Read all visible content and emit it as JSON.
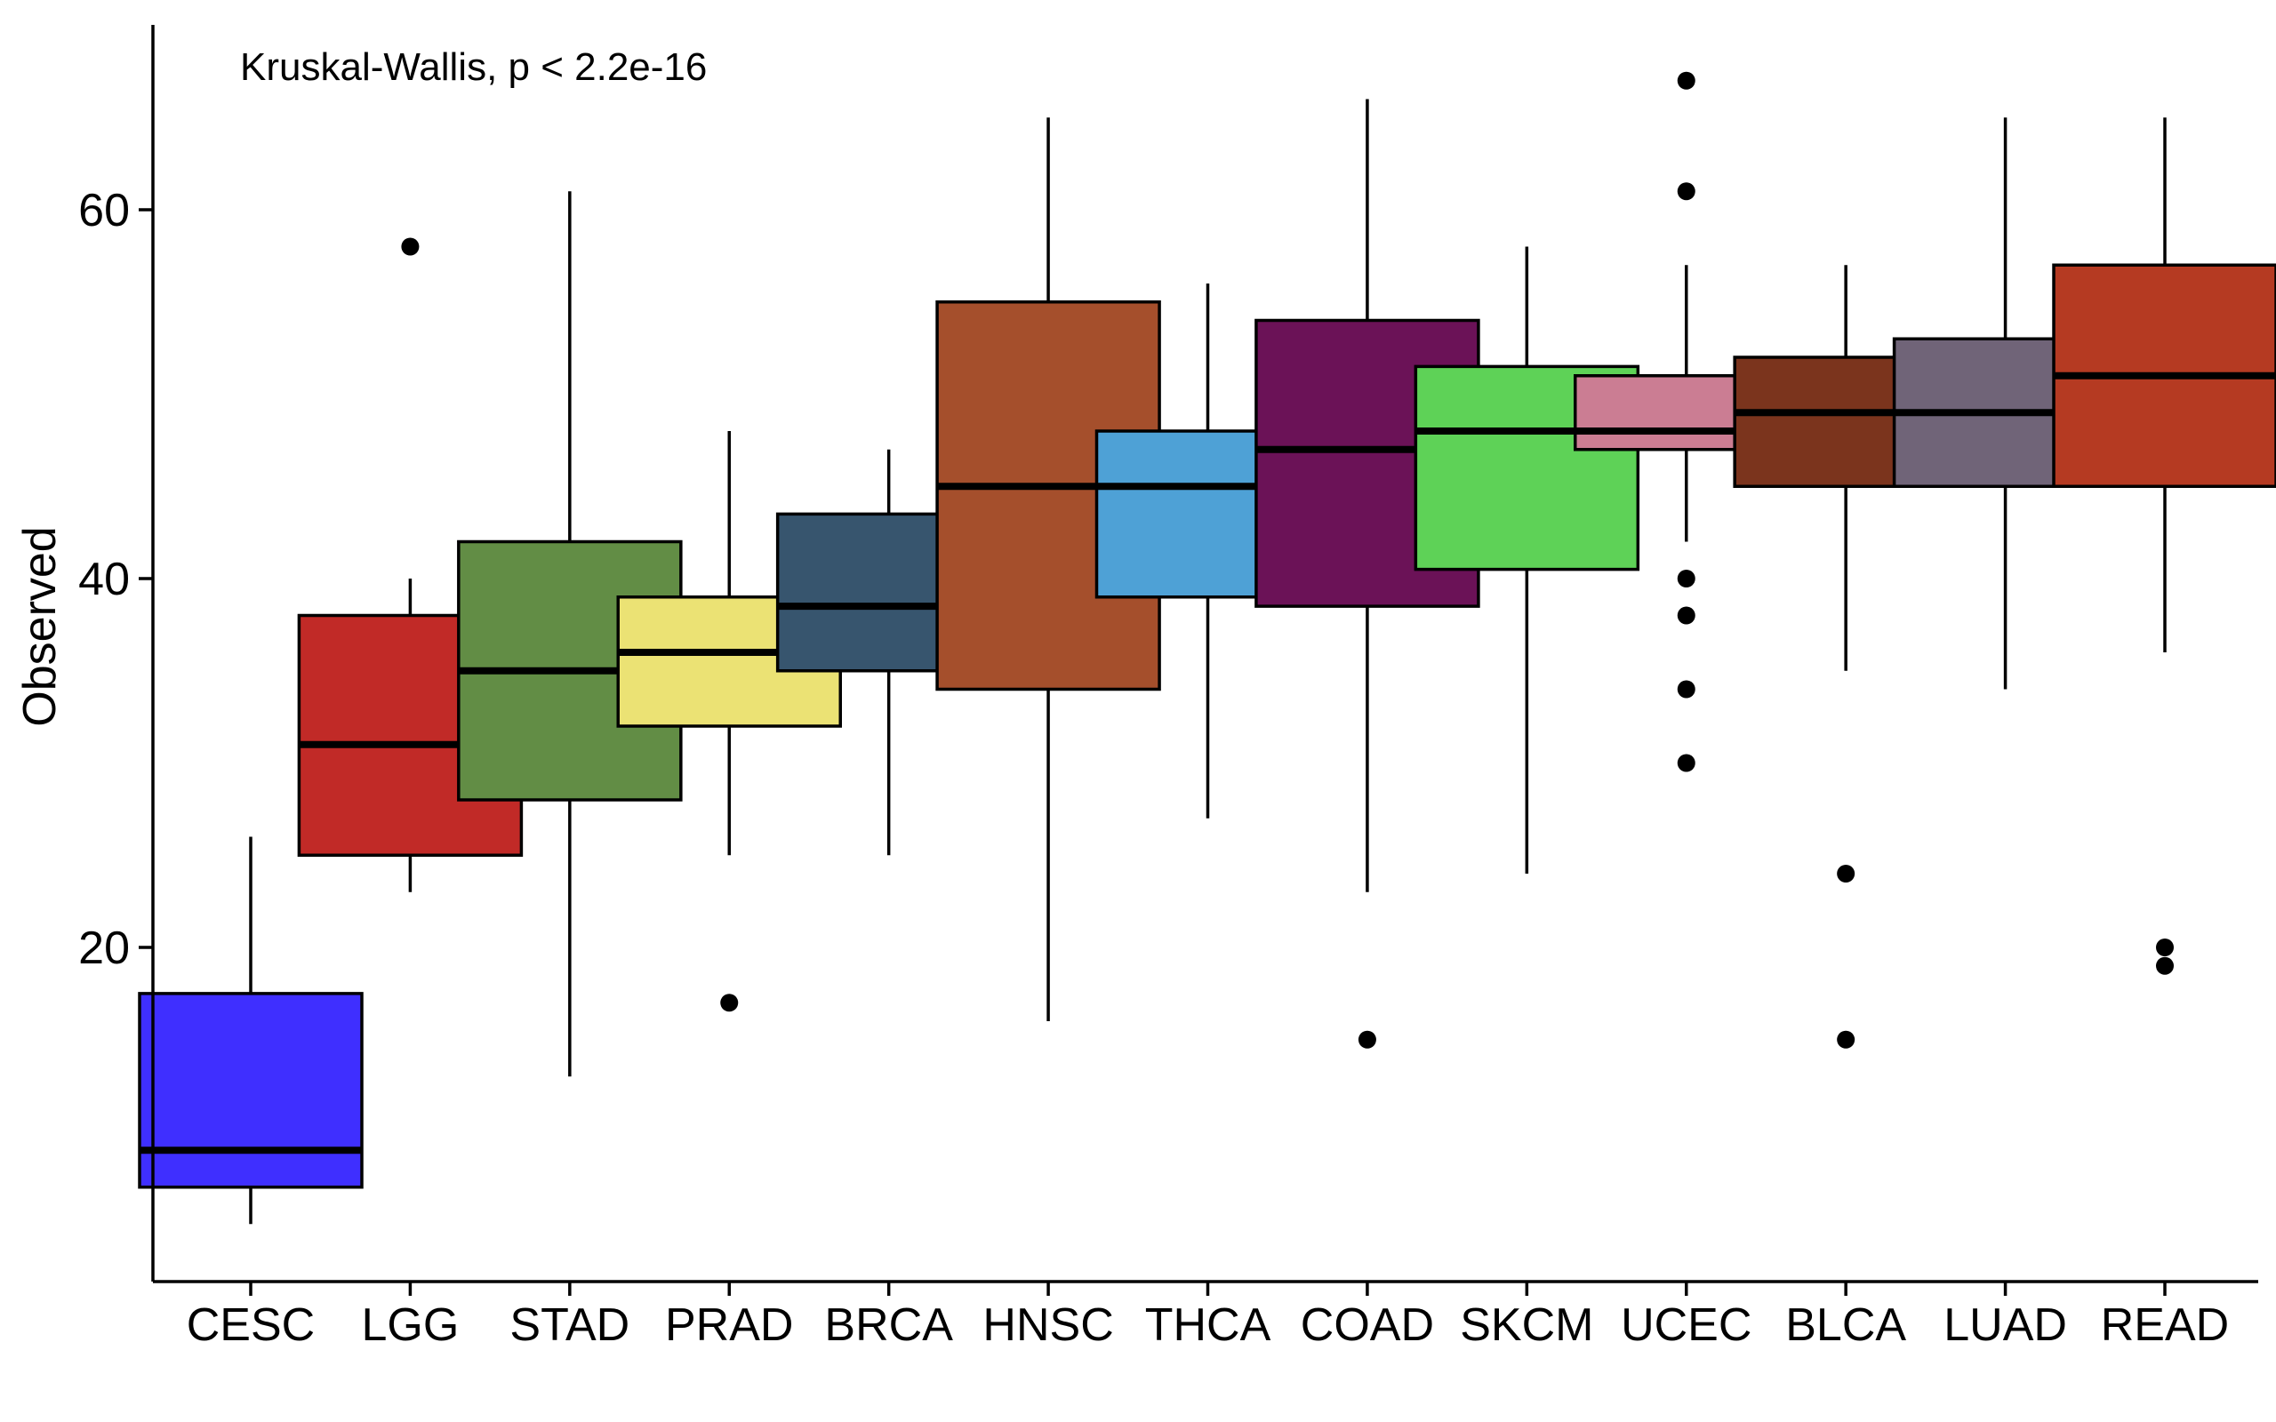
{
  "chart_data": {
    "type": "boxplot",
    "title": "",
    "annotation": "Kruskal-Wallis, p < 2.2e-16",
    "xlabel": "",
    "ylabel": "Observed",
    "ylim": [
      3,
      71
    ],
    "yticks": [
      20,
      40,
      60
    ],
    "grid": false,
    "legend": "none",
    "categories": [
      "CESC",
      "LGG",
      "STAD",
      "PRAD",
      "BRCA",
      "HNSC",
      "THCA",
      "COAD",
      "SKCM",
      "UCEC",
      "BLCA",
      "LUAD",
      "READ"
    ],
    "series": [
      {
        "category": "CESC",
        "color": "#3F2FFF",
        "whisker_low": 5,
        "q1": 7,
        "median": 9,
        "q3": 17.5,
        "whisker_high": 26,
        "outliers": []
      },
      {
        "category": "LGG",
        "color": "#C12A27",
        "whisker_low": 23,
        "q1": 25,
        "median": 31,
        "q3": 38,
        "whisker_high": 40,
        "outliers": [
          58
        ]
      },
      {
        "category": "STAD",
        "color": "#628D45",
        "whisker_low": 13,
        "q1": 28,
        "median": 35,
        "q3": 42,
        "whisker_high": 61,
        "outliers": []
      },
      {
        "category": "PRAD",
        "color": "#EBE274",
        "whisker_low": 25,
        "q1": 32,
        "median": 36,
        "q3": 39,
        "whisker_high": 48,
        "outliers": [
          17
        ]
      },
      {
        "category": "BRCA",
        "color": "#37556E",
        "whisker_low": 25,
        "q1": 35,
        "median": 38.5,
        "q3": 43.5,
        "whisker_high": 47,
        "outliers": []
      },
      {
        "category": "HNSC",
        "color": "#A54F2C",
        "whisker_low": 16,
        "q1": 34,
        "median": 45,
        "q3": 55,
        "whisker_high": 65,
        "outliers": []
      },
      {
        "category": "THCA",
        "color": "#4EA1D6",
        "whisker_low": 27,
        "q1": 39,
        "median": 45,
        "q3": 48,
        "whisker_high": 56,
        "outliers": []
      },
      {
        "category": "COAD",
        "color": "#6B1257",
        "whisker_low": 23,
        "q1": 38.5,
        "median": 47,
        "q3": 54,
        "whisker_high": 66,
        "outliers": [
          15
        ]
      },
      {
        "category": "SKCM",
        "color": "#5ED257",
        "whisker_low": 24,
        "q1": 40.5,
        "median": 48,
        "q3": 51.5,
        "whisker_high": 58,
        "outliers": []
      },
      {
        "category": "UCEC",
        "color": "#CB7D93",
        "whisker_low": 42,
        "q1": 47,
        "median": 48,
        "q3": 51,
        "whisker_high": 57,
        "outliers": [
          67,
          61,
          40,
          38,
          34,
          30
        ]
      },
      {
        "category": "BLCA",
        "color": "#7B341D",
        "whisker_low": 35,
        "q1": 45,
        "median": 49,
        "q3": 52,
        "whisker_high": 57,
        "outliers": [
          24,
          15
        ]
      },
      {
        "category": "LUAD",
        "color": "#706478",
        "whisker_low": 34,
        "q1": 45,
        "median": 49,
        "q3": 53,
        "whisker_high": 65,
        "outliers": []
      },
      {
        "category": "READ",
        "color": "#B53A22",
        "whisker_low": 36,
        "q1": 45,
        "median": 51,
        "q3": 57,
        "whisker_high": 65,
        "outliers": [
          20,
          19
        ]
      }
    ]
  }
}
